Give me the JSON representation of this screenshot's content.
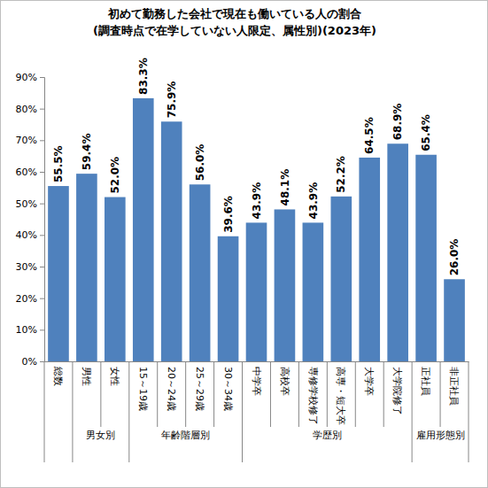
{
  "chart_data": {
    "type": "bar",
    "title": "初めて勤務した会社で現在も働いている人の割合",
    "subtitle": "(調査時点で在学していない人限定、属性別)(2023年)",
    "categories": [
      "総数",
      "男性",
      "女性",
      "15～19歳",
      "20～24歳",
      "25～29歳",
      "30～34歳",
      "中学卒",
      "高校卒",
      "専修学校修了",
      "高専・短大卒",
      "大学卒",
      "大学院修了",
      "正社員",
      "非正社員"
    ],
    "values": [
      55.5,
      59.4,
      52.0,
      83.3,
      75.9,
      56.0,
      39.6,
      43.9,
      48.1,
      43.9,
      52.2,
      64.5,
      68.9,
      65.4,
      26.0
    ],
    "value_labels": [
      "55.5%",
      "59.4%",
      "52.0%",
      "83.3%",
      "75.9%",
      "56.0%",
      "39.6%",
      "43.9%",
      "48.1%",
      "43.9%",
      "52.2%",
      "64.5%",
      "68.9%",
      "65.4%",
      "26.0%"
    ],
    "groups": [
      {
        "name": "男女別",
        "members": [
          "男性",
          "女性"
        ]
      },
      {
        "name": "年齢階層別",
        "members": [
          "15～19歳",
          "20～24歳",
          "25～29歳",
          "30～34歳"
        ]
      },
      {
        "name": "学歴別",
        "members": [
          "中学卒",
          "高校卒",
          "専修学校修了",
          "高専・短大卒",
          "大学卒",
          "大学院修了"
        ]
      },
      {
        "name": "雇用形態別",
        "members": [
          "正社員",
          "非正社員"
        ]
      }
    ],
    "color": "#4f81bd",
    "ylim": [
      0,
      90
    ],
    "yticks": [
      {
        "value": 0,
        "label": "0%"
      },
      {
        "value": 10,
        "label": "10%"
      },
      {
        "value": 20,
        "label": "20%"
      },
      {
        "value": 30,
        "label": "30%"
      },
      {
        "value": 40,
        "label": "40%"
      },
      {
        "value": 50,
        "label": "50%"
      },
      {
        "value": 60,
        "label": "60%"
      },
      {
        "value": 70,
        "label": "70%"
      },
      {
        "value": 80,
        "label": "80%"
      },
      {
        "value": 90,
        "label": "90%"
      }
    ],
    "grid": false,
    "data_labels": true
  }
}
